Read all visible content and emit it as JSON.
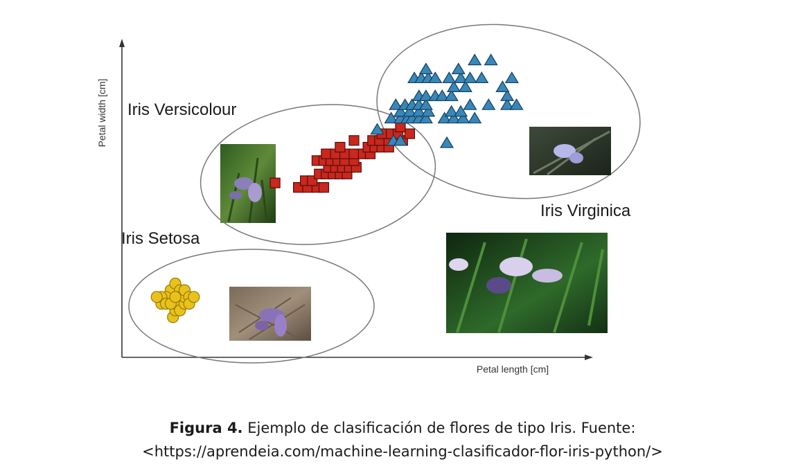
{
  "chart_data": {
    "type": "scatter",
    "xlabel": "Petal length [cm]",
    "ylabel": "Petal width [cm]",
    "grid": false,
    "axis_ticks": false,
    "clusters": [
      {
        "name": "Iris Setosa",
        "marker": "circle",
        "color": "#e8c21c",
        "stroke": "#9a7a00",
        "label": "Iris Setosa"
      },
      {
        "name": "Iris Versicolour",
        "marker": "square",
        "color": "#c8281e",
        "stroke": "#5a0c08",
        "label": "Iris Versicolour"
      },
      {
        "name": "Iris Virginica",
        "marker": "triangle",
        "color": "#3a86b8",
        "stroke": "#10405e",
        "label": "Iris Virginica"
      }
    ],
    "series": [
      {
        "name": "Iris Setosa",
        "marker": "circle",
        "points": [
          [
            1.1,
            0.9
          ],
          [
            1.15,
            1.05
          ],
          [
            1.15,
            1.2
          ],
          [
            1.05,
            1.35
          ],
          [
            1.05,
            1.5
          ],
          [
            1.15,
            1.65
          ],
          [
            1.25,
            1.5
          ],
          [
            1.25,
            1.35
          ],
          [
            1.25,
            1.2
          ],
          [
            1.25,
            1.05
          ],
          [
            1.35,
            1.2
          ],
          [
            1.35,
            1.35
          ],
          [
            1.35,
            1.5
          ],
          [
            1.45,
            1.35
          ],
          [
            1.45,
            1.2
          ],
          [
            1.55,
            1.35
          ],
          [
            0.95,
            1.35
          ],
          [
            0.85,
            1.2
          ],
          [
            0.85,
            1.35
          ],
          [
            0.75,
            1.35
          ],
          [
            0.95,
            1.2
          ],
          [
            1.05,
            1.2
          ],
          [
            1.15,
            1.35
          ]
        ]
      },
      {
        "name": "Iris Versicolour",
        "marker": "square",
        "points": [
          [
            3.3,
            3.9
          ],
          [
            3.8,
            3.8
          ],
          [
            4.0,
            3.8
          ],
          [
            4.2,
            3.8
          ],
          [
            4.35,
            3.8
          ],
          [
            3.95,
            3.95
          ],
          [
            4.1,
            3.95
          ],
          [
            4.25,
            4.1
          ],
          [
            4.4,
            4.1
          ],
          [
            4.55,
            4.1
          ],
          [
            4.7,
            4.1
          ],
          [
            4.85,
            4.1
          ],
          [
            4.45,
            4.25
          ],
          [
            4.6,
            4.25
          ],
          [
            4.75,
            4.25
          ],
          [
            4.9,
            4.25
          ],
          [
            5.05,
            4.25
          ],
          [
            4.2,
            4.4
          ],
          [
            4.35,
            4.4
          ],
          [
            4.5,
            4.4
          ],
          [
            4.65,
            4.4
          ],
          [
            4.8,
            4.4
          ],
          [
            5.0,
            4.4
          ],
          [
            4.4,
            4.55
          ],
          [
            4.6,
            4.55
          ],
          [
            4.8,
            4.55
          ],
          [
            5.0,
            4.55
          ],
          [
            5.2,
            4.55
          ],
          [
            5.35,
            4.55
          ],
          [
            4.7,
            4.7
          ],
          [
            5.3,
            4.7
          ],
          [
            5.45,
            4.7
          ],
          [
            5.6,
            4.7
          ],
          [
            5.75,
            4.7
          ],
          [
            5.0,
            4.85
          ],
          [
            5.4,
            4.85
          ],
          [
            5.55,
            4.85
          ],
          [
            5.75,
            4.85
          ],
          [
            5.9,
            4.85
          ],
          [
            6.05,
            4.85
          ],
          [
            5.6,
            5.0
          ],
          [
            5.8,
            5.0
          ],
          [
            5.95,
            5.0
          ],
          [
            6.2,
            5.0
          ],
          [
            6.0,
            5.15
          ]
        ]
      },
      {
        "name": "Iris Virginica",
        "marker": "triangle",
        "points": [
          [
            5.5,
            5.1
          ],
          [
            5.8,
            5.35
          ],
          [
            6.0,
            5.35
          ],
          [
            6.15,
            5.35
          ],
          [
            6.25,
            5.35
          ],
          [
            6.4,
            5.35
          ],
          [
            6.55,
            5.35
          ],
          [
            6.95,
            5.35
          ],
          [
            7.15,
            5.35
          ],
          [
            7.35,
            5.35
          ],
          [
            7.6,
            5.35
          ],
          [
            6.0,
            5.5
          ],
          [
            6.2,
            5.5
          ],
          [
            6.4,
            5.5
          ],
          [
            6.6,
            5.5
          ],
          [
            7.1,
            5.5
          ],
          [
            7.3,
            5.5
          ],
          [
            5.9,
            5.65
          ],
          [
            6.1,
            5.65
          ],
          [
            6.25,
            5.65
          ],
          [
            6.4,
            5.65
          ],
          [
            6.55,
            5.65
          ],
          [
            7.5,
            5.65
          ],
          [
            7.9,
            5.65
          ],
          [
            8.3,
            5.65
          ],
          [
            8.5,
            5.65
          ],
          [
            6.4,
            5.85
          ],
          [
            6.55,
            5.85
          ],
          [
            6.75,
            5.85
          ],
          [
            6.9,
            5.85
          ],
          [
            7.1,
            5.85
          ],
          [
            8.3,
            5.85
          ],
          [
            7.15,
            6.05
          ],
          [
            7.4,
            6.05
          ],
          [
            8.2,
            6.05
          ],
          [
            6.3,
            6.25
          ],
          [
            6.45,
            6.25
          ],
          [
            6.6,
            6.25
          ],
          [
            6.75,
            6.25
          ],
          [
            7.05,
            6.25
          ],
          [
            7.3,
            6.25
          ],
          [
            7.5,
            6.25
          ],
          [
            7.75,
            6.25
          ],
          [
            8.4,
            6.25
          ],
          [
            6.55,
            6.45
          ],
          [
            7.25,
            6.45
          ],
          [
            7.6,
            6.65
          ],
          [
            7.95,
            6.65
          ],
          [
            7.0,
            4.8
          ],
          [
            5.85,
            4.85
          ],
          [
            6.0,
            4.85
          ]
        ]
      }
    ],
    "xlim": [
      0,
      10
    ],
    "ylim": [
      0,
      7
    ]
  },
  "caption": {
    "strong": "Figura 4.",
    "text": " Ejemplo de clasificación de flores de tipo Iris. Fuente:",
    "source": "<https://aprendeia.com/machine-learning-clasificador-flor-iris-python/>"
  }
}
